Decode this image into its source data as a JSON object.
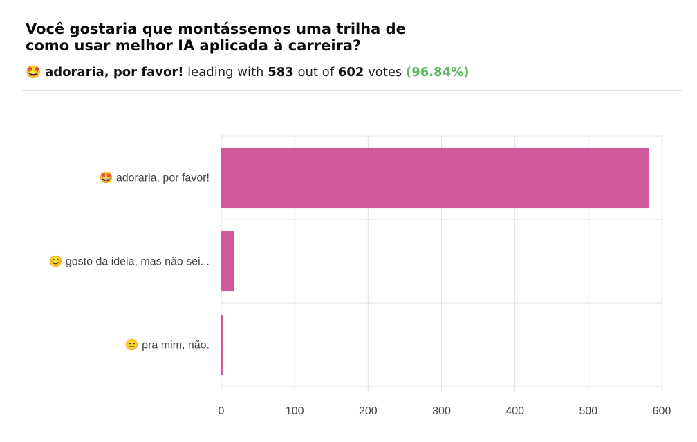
{
  "poll": {
    "title_line1": "Você gostaria que montássemos uma trilha de",
    "title_line2": "como usar melhor IA aplicada à carreira?"
  },
  "summary": {
    "emoji": "🤩",
    "leader": "adoraria, por favor!",
    "text_leading": "leading with",
    "leader_votes": "583",
    "text_out_of": "out of",
    "total_votes": "602",
    "text_votes": "votes",
    "percent": "(96.84%)",
    "percent_color": "#5cb85c"
  },
  "chart_data": {
    "type": "bar",
    "orientation": "horizontal",
    "categories": [
      "🤩 adoraria, por favor!",
      "😊 gosto da ideia, mas não sei...",
      "😑 pra mim, não."
    ],
    "values": [
      583,
      17,
      2
    ],
    "xlim": [
      0,
      600
    ],
    "xticks": [
      0,
      100,
      200,
      300,
      400,
      500,
      600
    ],
    "bar_color": "#d1589a",
    "grid": true,
    "xlabel": "",
    "ylabel": ""
  }
}
